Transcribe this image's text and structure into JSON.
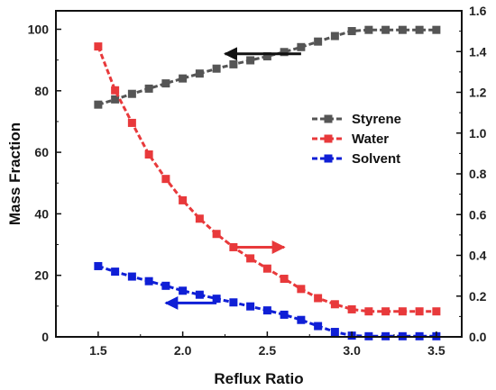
{
  "chart_data": {
    "type": "line",
    "xlabel": "Reflux Ratio",
    "ylabel": "Mass Fraction",
    "xlim": [
      1.25,
      3.65
    ],
    "ylim_left": [
      0,
      106
    ],
    "ylim_right": [
      0,
      1.6
    ],
    "x_ticks": [
      1.5,
      2.0,
      2.5,
      3.0,
      3.5
    ],
    "x_tick_labels": [
      "1.5",
      "2.0",
      "2.5",
      "3.0",
      "3.5"
    ],
    "y_left_ticks": [
      0,
      20,
      40,
      60,
      80,
      100
    ],
    "y_left_tick_labels": [
      "0",
      "20",
      "40",
      "60",
      "80",
      "100"
    ],
    "y_right_ticks": [
      0,
      0.2,
      0.4,
      0.6,
      0.8,
      1.0,
      1.2,
      1.4,
      1.6
    ],
    "y_right_tick_labels": [
      "0.0",
      "0.2",
      "0.4",
      "0.6",
      "0.8",
      "1.0",
      "1.2",
      "1.4",
      "1.6"
    ],
    "x": [
      1.5,
      1.6,
      1.7,
      1.8,
      1.9,
      2.0,
      2.1,
      2.2,
      2.3,
      2.4,
      2.5,
      2.6,
      2.7,
      2.8,
      2.9,
      3.0,
      3.1,
      3.2,
      3.3,
      3.4,
      3.5
    ],
    "series": [
      {
        "name": "Styrene",
        "axis": "left",
        "color": "#555555",
        "line_style": "dashed",
        "values": [
          75.5,
          77.2,
          79.0,
          80.7,
          82.4,
          84.0,
          85.6,
          87.2,
          88.6,
          89.9,
          91.2,
          92.6,
          94.2,
          96.0,
          97.8,
          99.4,
          99.8,
          99.8,
          99.8,
          99.8,
          99.8
        ]
      },
      {
        "name": "Water",
        "axis": "right",
        "color": "#e8393b",
        "line_style": "dashed",
        "values": [
          1.425,
          1.21,
          1.05,
          0.895,
          0.775,
          0.67,
          0.58,
          0.505,
          0.44,
          0.385,
          0.335,
          0.285,
          0.235,
          0.19,
          0.16,
          0.135,
          0.125,
          0.125,
          0.125,
          0.125,
          0.125
        ]
      },
      {
        "name": "Solvent",
        "axis": "left",
        "color": "#0f1fd6",
        "line_style": "dashed",
        "values": [
          23.0,
          21.2,
          19.6,
          18.1,
          16.6,
          15.0,
          13.7,
          12.4,
          11.2,
          9.9,
          8.6,
          7.2,
          5.5,
          3.5,
          1.6,
          0.4,
          0.2,
          0.2,
          0.2,
          0.2,
          0.2
        ]
      }
    ],
    "legend": {
      "position": "top-right"
    },
    "grid": false,
    "annotations": [
      {
        "type": "arrow",
        "direction": "left",
        "series": "Styrene",
        "x_start": 2.7,
        "x_end": 2.25,
        "y": 92,
        "axis": "left",
        "color": "#111111"
      },
      {
        "type": "arrow",
        "direction": "right",
        "series": "Water",
        "x_start": 2.3,
        "x_end": 2.6,
        "y": 0.44,
        "axis": "right",
        "color": "#e8393b"
      },
      {
        "type": "arrow",
        "direction": "left",
        "series": "Solvent",
        "x_start": 2.2,
        "x_end": 1.9,
        "y": 11,
        "axis": "left",
        "color": "#0f1fd6"
      }
    ]
  }
}
